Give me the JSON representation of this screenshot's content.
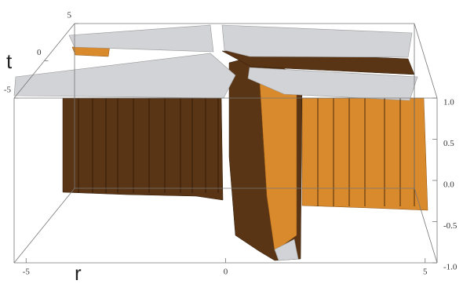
{
  "chart_data": {
    "type": "surface3d",
    "xlabel": "r",
    "ylabel": "t",
    "xlim": [
      -5.3,
      5.3
    ],
    "xticks": [
      -5,
      0,
      5
    ],
    "ylim": [
      -5,
      5
    ],
    "yticks": [
      -5,
      0,
      5
    ],
    "zlim": [
      -1,
      1
    ],
    "zticks": [
      {
        "value": 1,
        "label": "1.0"
      },
      {
        "value": 0.5,
        "label": "0.5"
      },
      {
        "value": 0,
        "label": "0.0"
      },
      {
        "value": -0.5,
        "label": "-0.5"
      },
      {
        "value": -1,
        "label": "-1.0"
      }
    ]
  }
}
